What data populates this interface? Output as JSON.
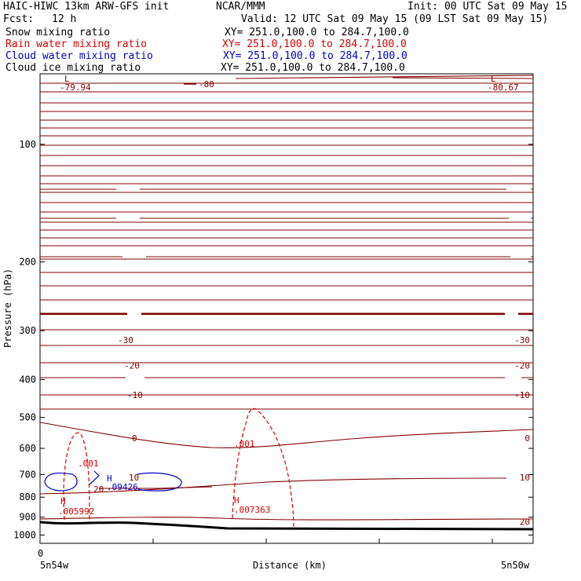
{
  "header": {
    "title_left": "HAIC-HIWC 13km ARW-GFS init",
    "org": "NCAR/MMM",
    "init": "Init: 00 UTC Sat 09 May 15",
    "fcst_label": "Fcst:",
    "fcst_value": "12 h",
    "valid": "Valid: 12 UTC Sat 09 May 15 (09 LST Sat 09 May 15)",
    "fields": [
      {
        "name": "Snow mixing ratio",
        "xy": "XY= 251.0,100.0 to 284.7,100.0",
        "color": "#000000"
      },
      {
        "name": "Rain water mixing ratio",
        "xy": "XY= 251.0,100.0 to 284.7,100.0",
        "color": "#dd0000"
      },
      {
        "name": "Cloud water mixing ratio",
        "xy": "XY= 251.0,100.0 to 284.7,100.0",
        "color": "#0000cc"
      },
      {
        "name": "Cloud ice mixing ratio",
        "xy": "XY= 251.0,100.0 to 284.7,100.0",
        "color": "#000000"
      }
    ]
  },
  "chart_data": {
    "type": "cross-section contour",
    "ylabel": "Pressure (hPa)",
    "xlabel": "Distance (km)",
    "y_scale": "log",
    "ylim": [
      1050,
      66
    ],
    "y_ticks": [
      100,
      200,
      300,
      400,
      500,
      600,
      700,
      800,
      900,
      1000
    ],
    "x_zero_label": "0",
    "x_left_label": "5n54w",
    "x_right_label": "5n50w",
    "grid": false,
    "colors": {
      "temperature": "#800000",
      "rain": "#dd0000",
      "cloud_water": "#0000cc",
      "terrain": "#000000"
    },
    "temperature_isotherms": [
      {
        "label": "-30",
        "pressure": 317
      },
      {
        "label": "-20",
        "pressure": 368
      },
      {
        "label": "-10",
        "pressure": 438
      },
      {
        "label": "0",
        "pressure": 565
      },
      {
        "label": "10",
        "pressure": 712
      },
      {
        "label": "20",
        "pressure": 925
      }
    ],
    "extremes": [
      {
        "type": "L",
        "value": "-79.94",
        "pressure": 100
      },
      {
        "type": "L",
        "value": "-80.67",
        "pressure": 100
      },
      {
        "type": "H",
        "value": ".005992",
        "series": "rain"
      },
      {
        "type": "H",
        "value": ".007363",
        "series": "rain"
      },
      {
        "type": "H",
        "value": ".09426",
        "series": "cloud_water"
      }
    ],
    "contour_labels": [
      {
        "text": "-80",
        "series": "temperature"
      },
      {
        "text": ".001",
        "series": "rain"
      },
      {
        "text": ".001",
        "series": "rain"
      },
      {
        "text": "20",
        "series": "temperature"
      }
    ]
  }
}
